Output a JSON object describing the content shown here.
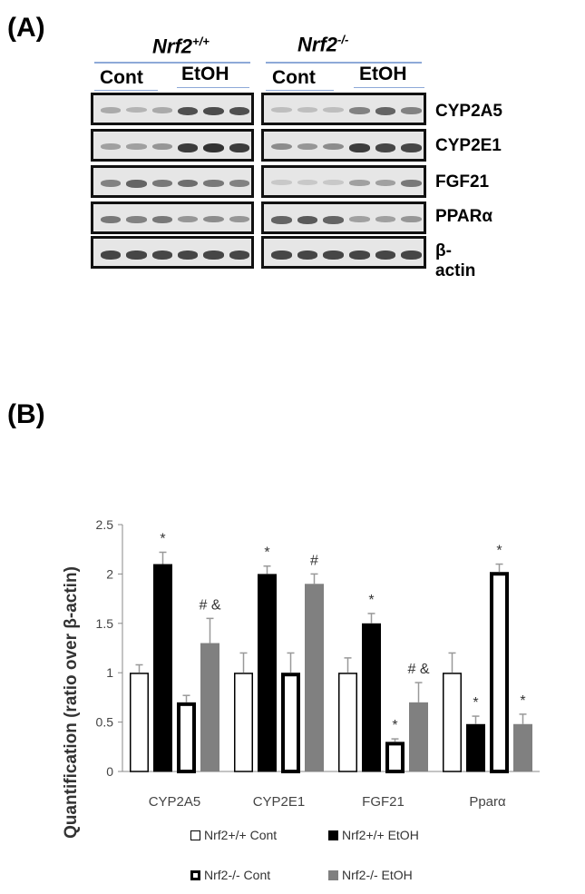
{
  "panel_a": {
    "label": "(A)",
    "genotypes": [
      {
        "name": "Nrf2",
        "superscript": "+/+"
      },
      {
        "name": "Nrf2",
        "superscript": "-/-"
      }
    ],
    "conditions": [
      "Cont",
      "EtOH"
    ],
    "proteins": [
      "CYP2A5",
      "CYP2E1",
      "FGF21",
      "PPARα",
      "β-actin"
    ],
    "blot_intensity": [
      [
        [
          0.25,
          0.2,
          0.25,
          0.7,
          0.72,
          0.7
        ],
        [
          0.15,
          0.15,
          0.15,
          0.45,
          0.6,
          0.45
        ]
      ],
      [
        [
          0.3,
          0.3,
          0.35,
          0.8,
          0.85,
          0.8
        ],
        [
          0.4,
          0.35,
          0.4,
          0.8,
          0.75,
          0.75
        ]
      ],
      [
        [
          0.45,
          0.6,
          0.5,
          0.55,
          0.5,
          0.45
        ],
        [
          0.1,
          0.1,
          0.1,
          0.3,
          0.3,
          0.5
        ]
      ],
      [
        [
          0.5,
          0.45,
          0.5,
          0.35,
          0.4,
          0.35
        ],
        [
          0.6,
          0.65,
          0.6,
          0.3,
          0.3,
          0.35
        ]
      ],
      [
        [
          0.75,
          0.75,
          0.75,
          0.75,
          0.75,
          0.75
        ],
        [
          0.75,
          0.75,
          0.75,
          0.75,
          0.75,
          0.75
        ]
      ]
    ]
  },
  "panel_b": {
    "label": "(B)"
  },
  "chart_data": {
    "type": "bar",
    "title": "",
    "xlabel": "",
    "ylabel": "Quantification (ratio over β-actin)",
    "ylim": [
      0,
      2.5
    ],
    "yticks": [
      "0",
      "0.5",
      "1",
      "1.5",
      "2",
      "2.5"
    ],
    "grid": false,
    "legend_position": "bottom",
    "categories": [
      "CYP2A5",
      "CYP2E1",
      "FGF21",
      "Pparα"
    ],
    "series": [
      {
        "name": "Nrf2+/+ Cont",
        "values": [
          1.0,
          1.0,
          1.0,
          1.0
        ],
        "errors": [
          0.08,
          0.2,
          0.15,
          0.2
        ],
        "fill": "#ffffff",
        "stroke": "#000000",
        "stroke_width": 1.5,
        "annotations": [
          "",
          "",
          "",
          ""
        ]
      },
      {
        "name": "Nrf2+/+ EtOH",
        "values": [
          2.1,
          2.0,
          1.5,
          0.48
        ],
        "errors": [
          0.12,
          0.08,
          0.1,
          0.08
        ],
        "fill": "#000000",
        "stroke": "#000000",
        "stroke_width": 1,
        "annotations": [
          "*",
          "*",
          "*",
          "*"
        ]
      },
      {
        "name": "Nrf2-/- Cont",
        "values": [
          0.7,
          1.0,
          0.3,
          2.02
        ],
        "errors": [
          0.07,
          0.2,
          0.03,
          0.08
        ],
        "fill": "#ffffff",
        "stroke": "#000000",
        "stroke_width": 4,
        "annotations": [
          "",
          "",
          "*",
          "*"
        ]
      },
      {
        "name": "Nrf2-/- EtOH",
        "values": [
          1.3,
          1.9,
          0.7,
          0.48
        ],
        "errors": [
          0.25,
          0.1,
          0.2,
          0.1
        ],
        "fill": "#808080",
        "stroke": "#808080",
        "stroke_width": 1,
        "annotations": [
          "# &",
          "#",
          "# &",
          "*"
        ]
      }
    ]
  }
}
